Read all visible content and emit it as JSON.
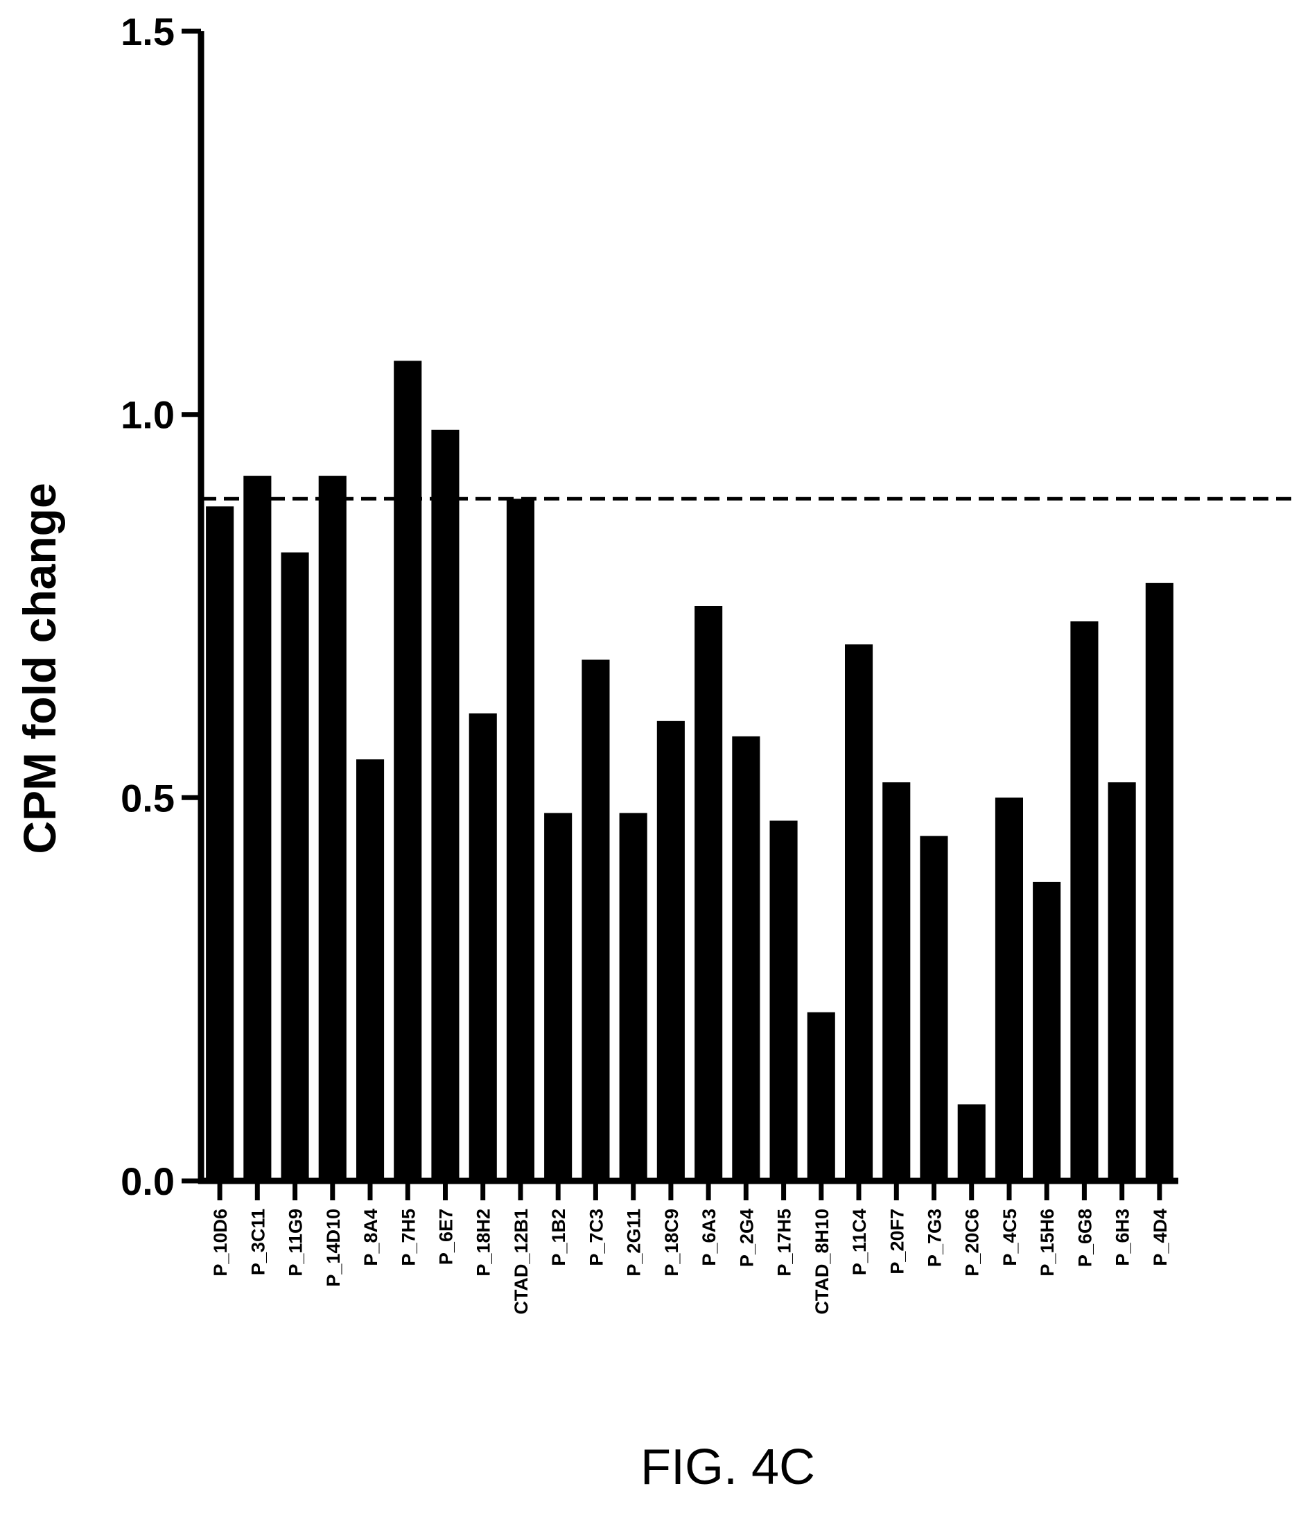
{
  "chart_data": {
    "type": "bar",
    "title": "",
    "xlabel": "",
    "ylabel": "CPM fold change",
    "ylim": [
      0,
      1.5
    ],
    "yticks": [
      "0.0",
      "0.5",
      "1.0",
      "1.5"
    ],
    "grid": false,
    "legend": "none",
    "reference_line": {
      "y": 0.89,
      "style": "dashed"
    },
    "categories": [
      "P_10D6",
      "P_3C11",
      "P_11G9",
      "P_14D10",
      "P_8A4",
      "P_7H5",
      "P_6E7",
      "P_18H2",
      "CTAD_12B1",
      "P_1B2",
      "P_7C3",
      "P_2G11",
      "P_18C9",
      "P_6A3",
      "P_2G4",
      "P_17H5",
      "CTAD_8H10",
      "P_11C4",
      "P_20F7",
      "P_7G3",
      "P_20C6",
      "P_4C5",
      "P_15H6",
      "P_6G8",
      "P_6H3",
      "P_4D4"
    ],
    "values": [
      0.88,
      0.92,
      0.82,
      0.92,
      0.55,
      1.07,
      0.98,
      0.61,
      0.89,
      0.48,
      0.68,
      0.48,
      0.6,
      0.75,
      0.58,
      0.47,
      0.22,
      0.7,
      0.52,
      0.45,
      0.1,
      0.5,
      0.39,
      0.73,
      0.52,
      0.78
    ],
    "colors": {
      "bar": "#000000",
      "axis": "#000000"
    }
  },
  "caption": "FIG. 4C"
}
